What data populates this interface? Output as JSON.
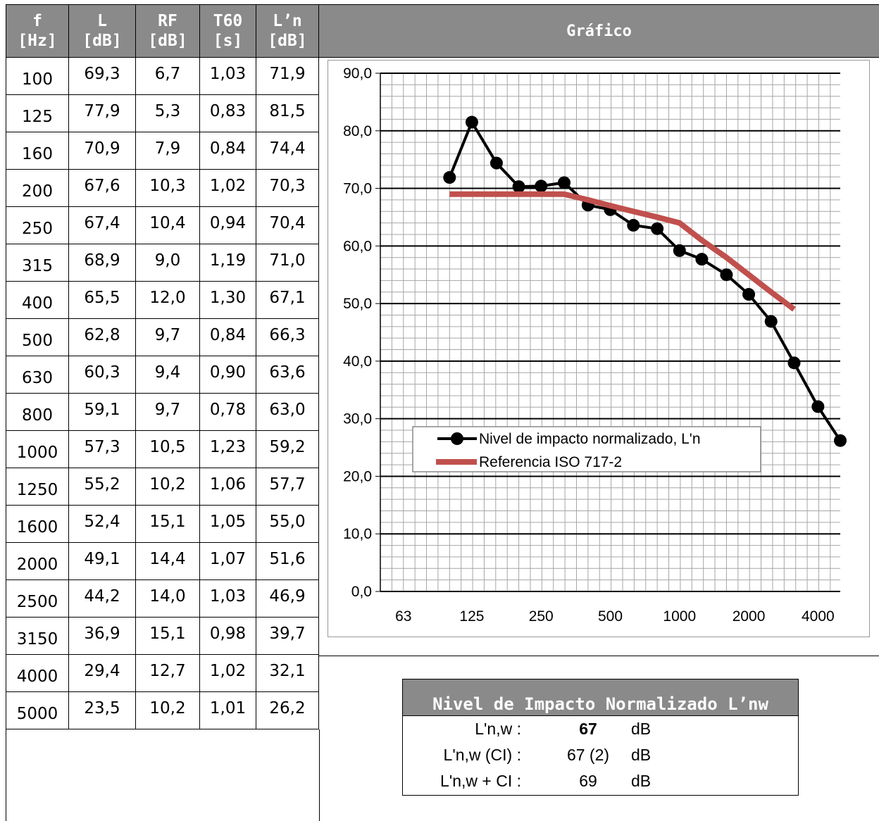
{
  "table": {
    "headers": [
      [
        "f",
        "[Hz]"
      ],
      [
        "L",
        "[dB]"
      ],
      [
        "RF",
        "[dB]"
      ],
      [
        "T60",
        "[s]"
      ],
      [
        "L’n",
        "[dB]"
      ]
    ],
    "rows": [
      [
        "100",
        "69,3",
        "6,7",
        "1,03",
        "71,9"
      ],
      [
        "125",
        "77,9",
        "5,3",
        "0,83",
        "81,5"
      ],
      [
        "160",
        "70,9",
        "7,9",
        "0,84",
        "74,4"
      ],
      [
        "200",
        "67,6",
        "10,3",
        "1,02",
        "70,3"
      ],
      [
        "250",
        "67,4",
        "10,4",
        "0,94",
        "70,4"
      ],
      [
        "315",
        "68,9",
        "9,0",
        "1,19",
        "71,0"
      ],
      [
        "400",
        "65,5",
        "12,0",
        "1,30",
        "67,1"
      ],
      [
        "500",
        "62,8",
        "9,7",
        "0,84",
        "66,3"
      ],
      [
        "630",
        "60,3",
        "9,4",
        "0,90",
        "63,6"
      ],
      [
        "800",
        "59,1",
        "9,7",
        "0,78",
        "63,0"
      ],
      [
        "1000",
        "57,3",
        "10,5",
        "1,23",
        "59,2"
      ],
      [
        "1250",
        "55,2",
        "10,2",
        "1,06",
        "57,7"
      ],
      [
        "1600",
        "52,4",
        "15,1",
        "1,05",
        "55,0"
      ],
      [
        "2000",
        "49,1",
        "14,4",
        "1,07",
        "51,6"
      ],
      [
        "2500",
        "44,2",
        "14,0",
        "1,03",
        "46,9"
      ],
      [
        "3150",
        "36,9",
        "15,1",
        "0,98",
        "39,7"
      ],
      [
        "4000",
        "29,4",
        "12,7",
        "1,02",
        "32,1"
      ],
      [
        "5000",
        "23,5",
        "10,2",
        "1,01",
        "26,2"
      ]
    ]
  },
  "chart_header": "Gráfico",
  "chart_data": {
    "type": "line",
    "x_log": true,
    "xlim": [
      50,
      5000
    ],
    "ylim": [
      0,
      90
    ],
    "ymajor": 10,
    "yminor": 2,
    "yticks": [
      "0,0",
      "10,0",
      "20,0",
      "30,0",
      "40,0",
      "50,0",
      "60,0",
      "70,0",
      "80,0",
      "90,0"
    ],
    "xtick_values": [
      63,
      125,
      250,
      500,
      1000,
      2000,
      4000
    ],
    "xtick_labels": [
      "63",
      "125",
      "250",
      "500",
      "1000",
      "2000",
      "4000"
    ],
    "grid": true,
    "legend_position": "center",
    "series": [
      {
        "name": "Nivel de impacto normalizado, L'n",
        "color": "#000000",
        "marker": "circle",
        "x": [
          100,
          125,
          160,
          200,
          250,
          315,
          400,
          500,
          630,
          800,
          1000,
          1250,
          1600,
          2000,
          2500,
          3150,
          4000,
          5000
        ],
        "y": [
          71.9,
          81.5,
          74.4,
          70.3,
          70.4,
          71.0,
          67.1,
          66.3,
          63.6,
          63.0,
          59.2,
          57.7,
          55.0,
          51.6,
          46.9,
          39.7,
          32.1,
          26.2
        ]
      },
      {
        "name": "Referencia ISO 717-2",
        "color": "#c0504d",
        "marker": "none",
        "x": [
          100,
          125,
          160,
          200,
          250,
          315,
          400,
          500,
          630,
          800,
          1000,
          1250,
          1600,
          2000,
          2500,
          3150
        ],
        "y": [
          69,
          69,
          69,
          69,
          69,
          69,
          68,
          67,
          66,
          65,
          64,
          61,
          58,
          55,
          52,
          49
        ]
      }
    ]
  },
  "result": {
    "title": "Nivel de Impacto Normalizado L’nw",
    "rows": [
      {
        "label": "L'n,w :",
        "value": "67",
        "unit": "dB"
      },
      {
        "label": "L'n,w (CI) :",
        "value": "67 (2)",
        "unit": "dB"
      },
      {
        "label": "L'n,w + CI :",
        "value": "69",
        "unit": "dB"
      }
    ]
  }
}
